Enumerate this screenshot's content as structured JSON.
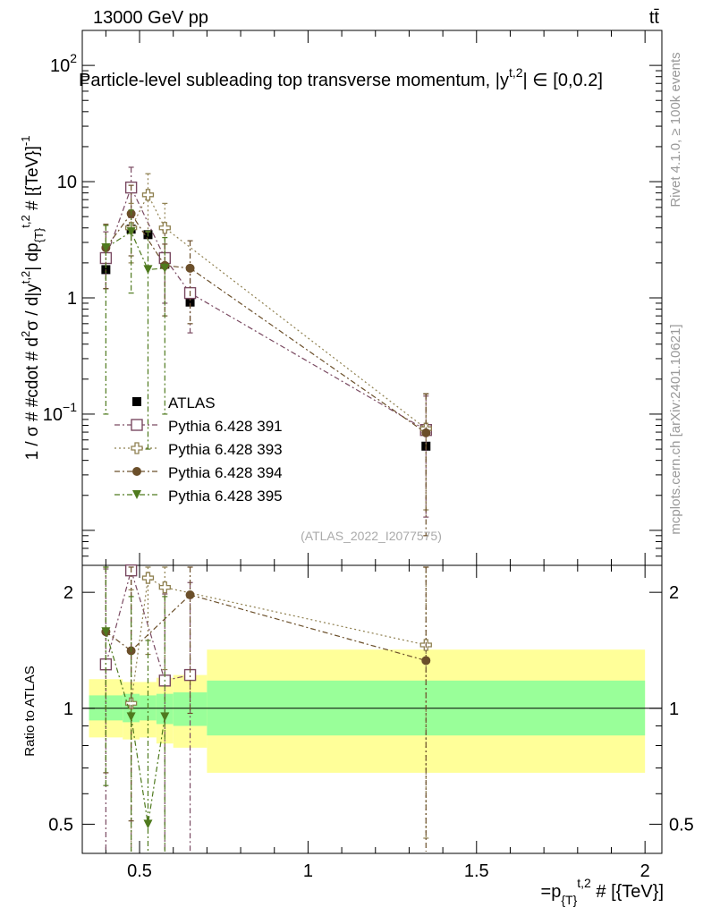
{
  "header": {
    "energy_label": "13000 GeV pp",
    "process_label": "tt̄"
  },
  "side_labels": {
    "rivet": "Rivet 4.1.0, ≥ 100k events",
    "mcplots": "mcplots.cern.ch [arXiv:2401.10621]"
  },
  "chart_data": [
    {
      "type": "scatter",
      "title": "Particle-level subleading top transverse momentum, |y^{t,2}| ∈ [0,0.2]",
      "analysis_id": "(ATLAS_2022_I2077575)",
      "ylabel": "1 / σ # #cdot # d²σ / d|y^{t,2}| dp_{T}^{t,2} # [{TeV}]^{-1}",
      "yscale": "log",
      "ylim": [
        0.005,
        200
      ],
      "yticks": [
        {
          "value": 100,
          "label": "10^2"
        },
        {
          "value": 10,
          "label": "10"
        },
        {
          "value": 1,
          "label": "1"
        },
        {
          "value": 0.1,
          "label": "10^-1"
        }
      ],
      "xlim": [
        0.33,
        2.05
      ],
      "legend_position": "center-left",
      "series": [
        {
          "name": "ATLAS",
          "color": "#000000",
          "marker": "filled-square",
          "line": "none",
          "x": [
            0.4,
            0.475,
            0.525,
            0.575,
            0.65,
            1.35
          ],
          "y": [
            1.75,
            3.9,
            3.5,
            1.95,
            0.92,
            0.053
          ]
        },
        {
          "name": "Pythia 6.428 391",
          "color": "#7a4a62",
          "marker": "open-square",
          "line": "dashdot",
          "x": [
            0.4,
            0.475,
            0.575,
            0.65,
            1.35
          ],
          "y": [
            2.2,
            8.9,
            2.2,
            1.1,
            0.073
          ],
          "err_up": [
            1.5,
            4.4,
            1.6,
            0.8,
            0.07
          ],
          "err_down": [
            1.0,
            4.0,
            1.3,
            0.6,
            0.06
          ]
        },
        {
          "name": "Pythia 6.428 393",
          "color": "#8f8050",
          "marker": "open-cross",
          "line": "dotted",
          "x": [
            0.475,
            0.525,
            0.575,
            1.35
          ],
          "y": [
            4.0,
            7.7,
            4.0,
            0.075
          ],
          "err_up": [
            2.5,
            4.0,
            2.5,
            0.075
          ],
          "err_down": [
            2.0,
            4.0,
            2.0,
            0.06
          ]
        },
        {
          "name": "Pythia 6.428 394",
          "color": "#6b4f2a",
          "marker": "filled-circle",
          "line": "dashdot",
          "x": [
            0.4,
            0.475,
            0.575,
            0.65,
            1.35
          ],
          "y": [
            2.7,
            5.3,
            1.9,
            1.8,
            0.069
          ],
          "err_up": [
            1.6,
            4.0,
            1.0,
            1.3,
            0.08
          ],
          "err_down": [
            1.5,
            3.0,
            1.2,
            1.2,
            0.06
          ]
        },
        {
          "name": "Pythia 6.428 395",
          "color": "#4f7a1e",
          "marker": "filled-triangle-down",
          "line": "dashdot",
          "x": [
            0.4,
            0.475,
            0.525,
            0.575
          ],
          "y": [
            2.7,
            3.7,
            1.75,
            1.8
          ],
          "err_up": [
            1.5,
            2.0,
            2.0,
            1.5
          ],
          "err_down": [
            2.6,
            2.6,
            1.7,
            1.7
          ]
        }
      ]
    },
    {
      "type": "scatter",
      "title": "Ratio to ATLAS",
      "ylabel": "Ratio to ATLAS",
      "xlabel": "=p_{T}^{t,2} # [{TeV}]",
      "yscale": "log",
      "ylim": [
        0.42,
        2.35
      ],
      "yticks": [
        {
          "value": 0.5,
          "label": "0.5"
        },
        {
          "value": 1,
          "label": "1"
        },
        {
          "value": 2,
          "label": "2"
        }
      ],
      "xlim": [
        0.33,
        2.05
      ],
      "xticks": [
        {
          "value": 0.5,
          "label": "0.5"
        },
        {
          "value": 1,
          "label": "1"
        },
        {
          "value": 1.5,
          "label": "1.5"
        },
        {
          "value": 2,
          "label": "2"
        }
      ],
      "uncertainty_bands": [
        {
          "x_lo": 0.35,
          "x_hi": 0.45,
          "stat_lo": 0.93,
          "stat_hi": 1.08,
          "total_lo": 0.84,
          "total_hi": 1.19
        },
        {
          "x_lo": 0.45,
          "x_hi": 0.5,
          "stat_lo": 0.92,
          "stat_hi": 1.09,
          "total_lo": 0.83,
          "total_hi": 1.17
        },
        {
          "x_lo": 0.5,
          "x_hi": 0.55,
          "stat_lo": 0.93,
          "stat_hi": 1.08,
          "total_lo": 0.84,
          "total_hi": 1.17
        },
        {
          "x_lo": 0.55,
          "x_hi": 0.6,
          "stat_lo": 0.91,
          "stat_hi": 1.09,
          "total_lo": 0.81,
          "total_hi": 1.2
        },
        {
          "x_lo": 0.6,
          "x_hi": 0.7,
          "stat_lo": 0.9,
          "stat_hi": 1.1,
          "total_lo": 0.79,
          "total_hi": 1.22
        },
        {
          "x_lo": 0.7,
          "x_hi": 2.0,
          "stat_lo": 0.85,
          "stat_hi": 1.18,
          "total_lo": 0.68,
          "total_hi": 1.42
        }
      ],
      "series": [
        {
          "name": "Pythia 6.428 391",
          "color": "#7a4a62",
          "marker": "open-square",
          "line": "dashdot",
          "x": [
            0.4,
            0.475,
            0.575,
            0.65
          ],
          "y": [
            1.3,
            2.28,
            1.18,
            1.22
          ],
          "err_up": [
            1.0,
            1.1,
            0.8,
            0.9
          ],
          "err_down": [
            0.95,
            1.9,
            0.8,
            0.85
          ]
        },
        {
          "name": "Pythia 6.428 393",
          "color": "#8f8050",
          "marker": "open-cross",
          "line": "dotted",
          "x": [
            0.475,
            0.525,
            0.575,
            1.35
          ],
          "y": [
            1.03,
            2.18,
            2.06,
            1.46
          ],
          "err_up": [
            1.0,
            1.0,
            1.0,
            1.0
          ],
          "err_down": [
            0.7,
            0.8,
            0.8,
            1.0
          ]
        },
        {
          "name": "Pythia 6.428 394",
          "color": "#6b4f2a",
          "marker": "filled-circle",
          "line": "dashdot",
          "x": [
            0.4,
            0.475,
            0.65,
            1.35
          ],
          "y": [
            1.58,
            1.41,
            1.97,
            1.33
          ],
          "err_up": [
            1.0,
            1.0,
            1.0,
            1.0
          ],
          "err_down": [
            0.9,
            0.9,
            1.0,
            1.0
          ]
        },
        {
          "name": "Pythia 6.428 395",
          "color": "#4f7a1e",
          "marker": "filled-triangle-down",
          "line": "dashdot",
          "x": [
            0.4,
            0.475,
            0.525,
            0.575
          ],
          "y": [
            1.58,
            0.95,
            0.5,
            0.95
          ],
          "err_up": [
            1.0,
            1.0,
            1.0,
            1.0
          ],
          "err_down": [
            0.95,
            0.85,
            0.5,
            0.9
          ]
        }
      ]
    }
  ]
}
